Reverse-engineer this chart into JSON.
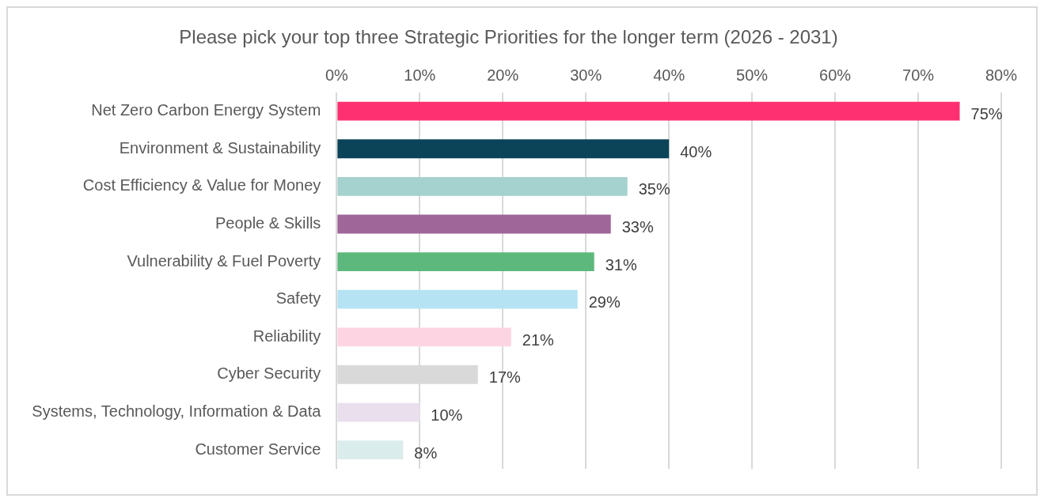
{
  "chart_data": {
    "type": "bar",
    "orientation": "horizontal",
    "title": "Please pick your top three Strategic Priorities for the longer term (2026 - 2031)",
    "categories": [
      "Net Zero Carbon Energy System",
      "Environment & Sustainability",
      "Cost Efficiency & Value for Money",
      "People & Skills",
      "Vulnerability & Fuel Poverty",
      "Safety",
      "Reliability",
      "Cyber Security",
      "Systems, Technology, Information & Data",
      "Customer Service"
    ],
    "values": [
      75,
      40,
      35,
      33,
      31,
      29,
      21,
      17,
      10,
      8
    ],
    "value_labels": [
      "75%",
      "40%",
      "35%",
      "33%",
      "31%",
      "29%",
      "21%",
      "17%",
      "10%",
      "8%"
    ],
    "colors": [
      "#ff3072",
      "#0b4458",
      "#a5d1cf",
      "#9e6699",
      "#5cb87c",
      "#b5e3f4",
      "#fdd5e2",
      "#d9d9d9",
      "#e9dfed",
      "#daeceb"
    ],
    "xlim": [
      0,
      80
    ],
    "xticks": [
      {
        "value": 0,
        "label": "0%"
      },
      {
        "value": 10,
        "label": "10%"
      },
      {
        "value": 20,
        "label": "20%"
      },
      {
        "value": 30,
        "label": "30%"
      },
      {
        "value": 40,
        "label": "40%"
      },
      {
        "value": 50,
        "label": "50%"
      },
      {
        "value": 60,
        "label": "60%"
      },
      {
        "value": 70,
        "label": "70%"
      },
      {
        "value": 80,
        "label": "80%"
      }
    ],
    "grid": "x"
  }
}
